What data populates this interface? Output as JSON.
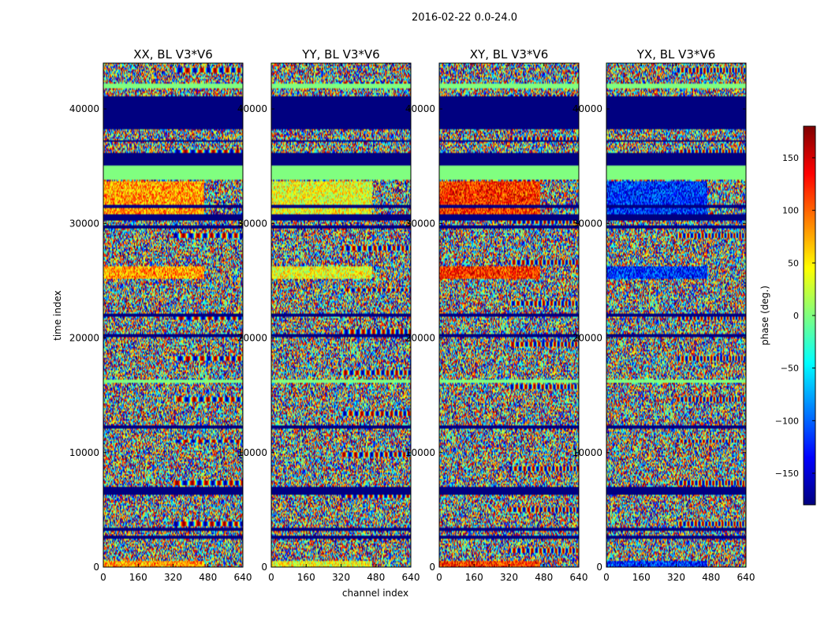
{
  "figure": {
    "suptitle": "2016-02-22 0.0-24.0"
  },
  "chart_data": {
    "type": "heatmap",
    "suptitle": "2016-02-22 0.0-24.0",
    "xlabel": "channel index",
    "ylabel": "time index",
    "xlim": [
      0,
      640
    ],
    "ylim": [
      0,
      44000
    ],
    "xticks": [
      0,
      160,
      320,
      480,
      640
    ],
    "yticks": [
      0,
      10000,
      20000,
      30000,
      40000
    ],
    "colormap": "jet",
    "colorbar": {
      "label": "phase (deg.)",
      "range": [
        -180,
        180
      ],
      "ticks": [
        -150,
        -100,
        -50,
        0,
        50,
        100,
        150
      ]
    },
    "panels": [
      {
        "title": "XX, BL V3*V6",
        "bias": 80
      },
      {
        "title": "YY, BL V3*V6",
        "bias": 40
      },
      {
        "title": "XY, BL V3*V6",
        "bias": 120
      },
      {
        "title": "YX, BL V3*V6",
        "bias": -120
      }
    ],
    "uniform_bands": [
      {
        "from": 6300,
        "to": 7000,
        "phase": -180
      },
      {
        "from": 30200,
        "to": 30800,
        "phase": -180
      },
      {
        "from": 33800,
        "to": 35000,
        "phase": 0
      },
      {
        "from": 35000,
        "to": 36200,
        "phase": -180
      },
      {
        "from": 38200,
        "to": 40800,
        "phase": -180
      },
      {
        "from": 41800,
        "to": 42200,
        "phase": 0
      }
    ],
    "thin_lines": [
      {
        "at": 2600,
        "phase": -180
      },
      {
        "at": 3300,
        "phase": -180
      },
      {
        "at": 12200,
        "phase": -180
      },
      {
        "at": 16200,
        "phase": 0
      },
      {
        "at": 20200,
        "phase": -180
      },
      {
        "at": 22000,
        "phase": -180
      },
      {
        "at": 29700,
        "phase": -180
      },
      {
        "at": 31500,
        "phase": -180
      },
      {
        "at": 37200,
        "phase": -180
      },
      {
        "at": 41000,
        "phase": -180
      }
    ],
    "biased_bands": [
      {
        "from": 0,
        "to": 600
      },
      {
        "from": 25200,
        "to": 26200
      },
      {
        "from": 30800,
        "to": 33700
      }
    ]
  }
}
